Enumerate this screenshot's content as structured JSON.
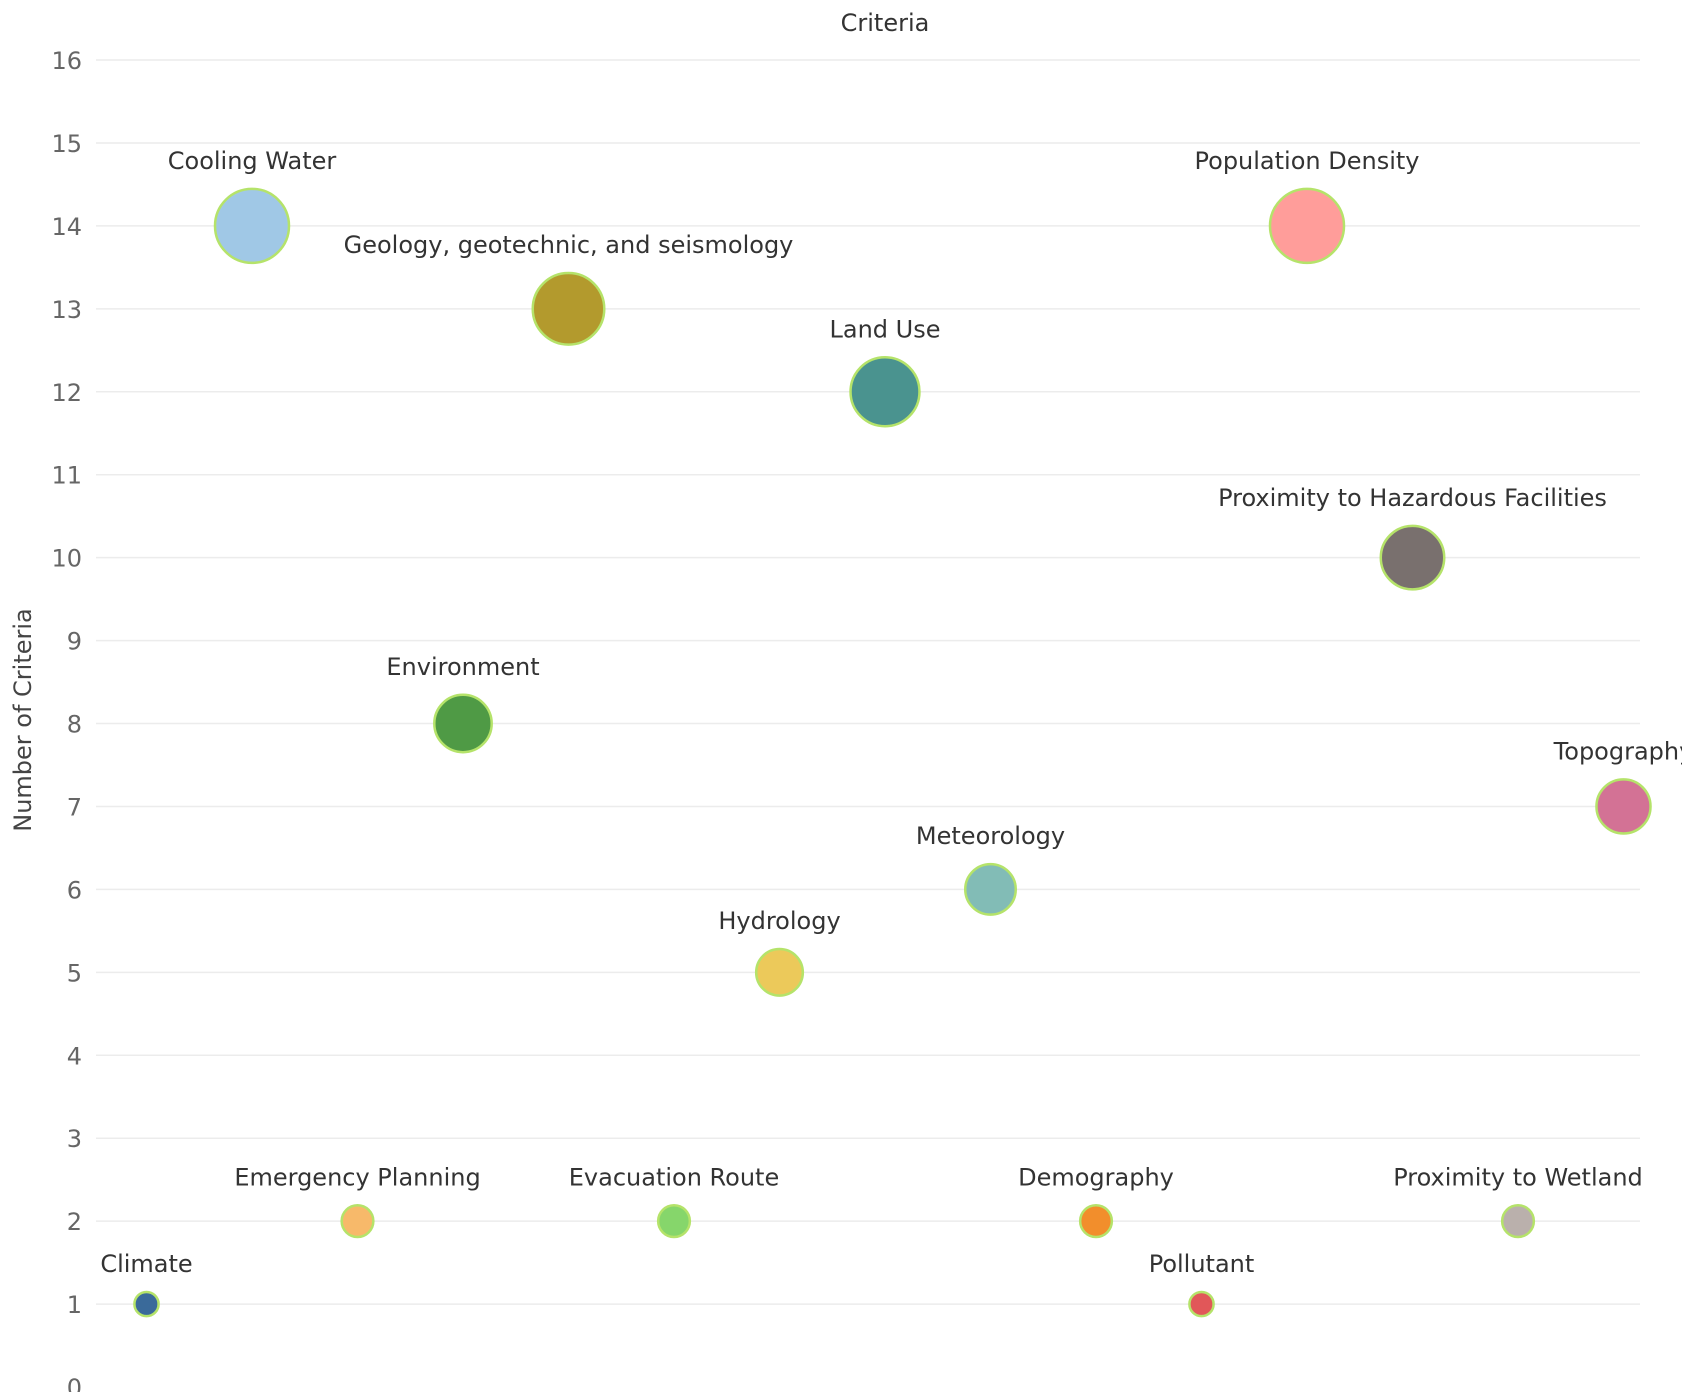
{
  "chart_data": {
    "type": "scatter",
    "title": "Criteria",
    "xlabel": "",
    "ylabel": "Number of Criteria",
    "ylim": [
      0,
      16
    ],
    "yticks": [
      0,
      1,
      2,
      3,
      4,
      5,
      6,
      7,
      8,
      9,
      10,
      11,
      12,
      13,
      14,
      15,
      16
    ],
    "grid": true,
    "legend": "none",
    "marker_outline_color": "#b5e36a",
    "points": [
      {
        "label": "Cooling Water",
        "value": 14,
        "color": "#a0c8e6",
        "col": 0
      },
      {
        "label": "Climate",
        "value": 1,
        "color": "#3a6a9a",
        "col": -1
      },
      {
        "label": "Emergency Planning",
        "value": 2,
        "color": "#f7b96a",
        "col": 1
      },
      {
        "label": "Environment",
        "value": 8,
        "color": "#4f9a45",
        "col": 2
      },
      {
        "label": "Geology, geotechnic, and seismology",
        "value": 13,
        "color": "#b39a2d",
        "col": 3
      },
      {
        "label": "Evacuation Route",
        "value": 2,
        "color": "#86d66b",
        "col": 4
      },
      {
        "label": "Hydrology",
        "value": 5,
        "color": "#ecc95a",
        "col": 5
      },
      {
        "label": "Land Use",
        "value": 12,
        "color": "#4a938f",
        "col": 6
      },
      {
        "label": "Meteorology",
        "value": 6,
        "color": "#82bcb6",
        "col": 7
      },
      {
        "label": "Demography",
        "value": 2,
        "color": "#f28e2c",
        "col": 8
      },
      {
        "label": "Pollutant",
        "value": 1,
        "color": "#e15759",
        "col": 9
      },
      {
        "label": "Population Density",
        "value": 14,
        "color": "#ff9d9a",
        "col": 10
      },
      {
        "label": "Proximity to Hazardous Facilities",
        "value": 10,
        "color": "#79706e",
        "col": 11
      },
      {
        "label": "Proximity to Wetland",
        "value": 2,
        "color": "#bab0ac",
        "col": 12
      },
      {
        "label": "Topography",
        "value": 7,
        "color": "#d37295",
        "col": 13
      }
    ]
  }
}
